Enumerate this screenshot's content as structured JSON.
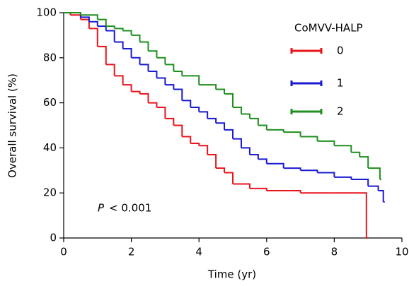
{
  "chart_data": {
    "type": "step",
    "xlabel": "Time (yr)",
    "ylabel": "Overall survival (%)",
    "xlim": [
      0,
      10
    ],
    "xticks": [
      0,
      2,
      4,
      6,
      8,
      10
    ],
    "ylim": [
      0,
      100
    ],
    "yticks": [
      0,
      20,
      40,
      60,
      80,
      100
    ],
    "legend_title": "CoMVV-HALP",
    "legend": "upper right",
    "annotation_italic": "P",
    "annotation": "< 0.001",
    "series": [
      {
        "name": "0",
        "color": "#e8141c",
        "x": [
          0,
          0.2,
          0.5,
          0.75,
          1.0,
          1.25,
          1.5,
          1.75,
          2.0,
          2.25,
          2.5,
          2.75,
          3.0,
          3.25,
          3.5,
          3.75,
          4.0,
          4.25,
          4.5,
          4.75,
          5.0,
          5.5,
          6.0,
          7.0,
          8.0,
          8.95
        ],
        "values": [
          100,
          99,
          97,
          93,
          85,
          77,
          72,
          68,
          65,
          64,
          60,
          58,
          53,
          50,
          45,
          42,
          41,
          37,
          31,
          29,
          24,
          22,
          21,
          20,
          20,
          0
        ]
      },
      {
        "name": "1",
        "color": "#1a1ad0",
        "x": [
          0,
          0.5,
          0.75,
          1.0,
          1.25,
          1.5,
          1.75,
          2.0,
          2.25,
          2.5,
          2.75,
          3.0,
          3.25,
          3.5,
          3.75,
          4.0,
          4.25,
          4.5,
          4.75,
          5.0,
          5.25,
          5.5,
          5.75,
          6.0,
          6.5,
          7.0,
          7.5,
          8.0,
          8.5,
          9.0,
          9.3,
          9.45
        ],
        "values": [
          100,
          98,
          96,
          94,
          92,
          87,
          84,
          80,
          77,
          74,
          71,
          68,
          66,
          61,
          58,
          56,
          53,
          51,
          48,
          44,
          40,
          37,
          35,
          33,
          31,
          30,
          29,
          27,
          26,
          23,
          21,
          16
        ]
      },
      {
        "name": "2",
        "color": "#1f8f1f",
        "x": [
          0,
          0.5,
          1.0,
          1.25,
          1.5,
          1.75,
          2.0,
          2.25,
          2.5,
          2.75,
          3.0,
          3.25,
          3.5,
          4.0,
          4.5,
          4.75,
          5.0,
          5.25,
          5.5,
          5.75,
          6.0,
          6.5,
          7.0,
          7.5,
          8.0,
          8.5,
          8.75,
          9.0,
          9.35
        ],
        "values": [
          100,
          99,
          97,
          94,
          93,
          92,
          90,
          87,
          83,
          80,
          77,
          74,
          72,
          68,
          66,
          64,
          58,
          55,
          53,
          50,
          48,
          47,
          45,
          43,
          41,
          38,
          36,
          31,
          26
        ]
      }
    ]
  }
}
